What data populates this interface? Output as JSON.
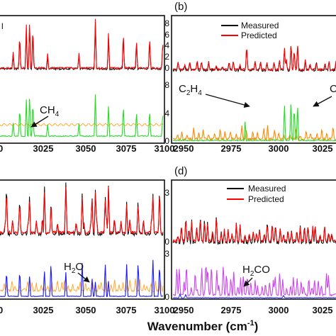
{
  "chart_data": [
    {
      "panel": "",
      "type": "line",
      "xlim": [
        3000,
        3100
      ],
      "x_ticks": [
        "3025",
        "3050",
        "3075",
        "3100"
      ],
      "x_tick_left_partial": "0",
      "y_tick_partial": "l",
      "molecule": {
        "base": "CH",
        "sub": "4"
      },
      "series": [
        {
          "color": "#000000",
          "trace": "upper",
          "offset": 0
        },
        {
          "color": "#ff0000",
          "trace": "upper",
          "offset": 0
        },
        {
          "color": "#00dd00",
          "trace": "lower"
        },
        {
          "color": "#ffb020",
          "trace": "lower-baseline"
        }
      ],
      "peaks": [
        3008,
        3012,
        3016,
        3018,
        3020,
        3029,
        3048,
        3058,
        3066,
        3075,
        3083,
        3091,
        3099
      ]
    },
    {
      "panel": "(b)",
      "type": "line",
      "xlim": [
        2950,
        3040
      ],
      "x_ticks": [
        "2950",
        "2975",
        "3000",
        "3025"
      ],
      "y_ticks_upper": [
        "8",
        "6",
        "4",
        "2",
        "0"
      ],
      "y_ticks_lower": [
        "8",
        "4",
        "0"
      ],
      "legend": [
        "Measured",
        "Predicted"
      ],
      "molecules": [
        {
          "base": "C",
          "sub": "2",
          "base2": "H",
          "sub2": "4"
        },
        {
          "partial": "C"
        }
      ],
      "peaks_c2h4": [
        2989
      ],
      "peaks_ch4": [
        3012,
        3016,
        3018,
        3020
      ]
    },
    {
      "panel": "",
      "type": "line",
      "xlim": [
        3000,
        3100
      ],
      "x_ticks": [
        "3025",
        "3050",
        "3075",
        "3100"
      ],
      "x_tick_left_partial": "0",
      "molecule": {
        "base": "H",
        "sub": "2",
        "base2": "O"
      },
      "peaks": [
        3004,
        3012,
        3018,
        3027,
        3031,
        3040,
        3050,
        3056,
        3058,
        3064,
        3066,
        3077,
        3084,
        3093,
        3097
      ]
    },
    {
      "panel": "(d)",
      "type": "line",
      "xlim": [
        2950,
        3040
      ],
      "x_ticks": [
        "2950",
        "2975",
        "3000",
        "3025"
      ],
      "y_ticks_upper": [
        "3",
        "0"
      ],
      "y_ticks_lower": [
        "3",
        "0"
      ],
      "legend": [
        "Measured",
        "Predicted"
      ],
      "molecule": {
        "base": "H",
        "sub": "2",
        "base2": "CO"
      }
    }
  ],
  "labels": {
    "panel_b": "(b)",
    "panel_d": "(d)",
    "legend_measured": "Measured",
    "legend_predicted": "Predicted",
    "xlabel_main": "Wavenumber (cm",
    "xlabel_sup": "-1",
    "xlabel_close": ")"
  },
  "colors": {
    "measured": "#000000",
    "predicted": "#ff0000",
    "ch4": "#22dd22",
    "c2h4": "#ff8800",
    "orange_bg": "#ffaa33",
    "h2o": "#1a1aff",
    "h2co": "#cc44ee",
    "blue_small": "#1a1aff"
  }
}
